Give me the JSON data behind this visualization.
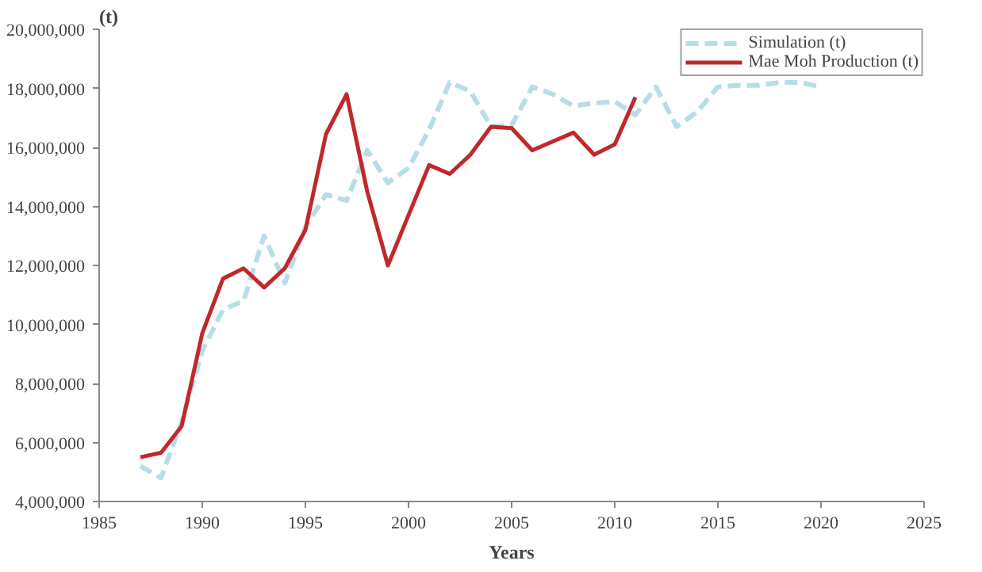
{
  "chart_data": {
    "type": "line",
    "xlabel": "Years",
    "ylabel": "(t)",
    "xlim": [
      1985,
      2025
    ],
    "xticks": [
      1985,
      1990,
      1995,
      2000,
      2005,
      2010,
      2015,
      2020,
      2025
    ],
    "ylim": [
      4000000,
      20000000
    ],
    "yticks": [
      {
        "value": 4000000,
        "label": "4,000,000"
      },
      {
        "value": 6000000,
        "label": "6,000,000"
      },
      {
        "value": 8000000,
        "label": "8,000,000"
      },
      {
        "value": 10000000,
        "label": "10,000,000"
      },
      {
        "value": 12000000,
        "label": "12,000,000"
      },
      {
        "value": 14000000,
        "label": "14,000,000"
      },
      {
        "value": 16000000,
        "label": "16,000,000"
      },
      {
        "value": 18000000,
        "label": "18,000,000"
      },
      {
        "value": 20000000,
        "label": "20,000,000"
      }
    ],
    "grid": false,
    "legend": "top right",
    "marker": "none",
    "series": [
      {
        "name": "Simulation (t)",
        "color": "#b7dde8",
        "line_style": "dashed",
        "x": [
          1987,
          1988,
          1989,
          1990,
          1991,
          1992,
          1993,
          1994,
          1995,
          1996,
          1997,
          1998,
          1999,
          2000,
          2001,
          2002,
          2003,
          2004,
          2005,
          2006,
          2007,
          2008,
          2009,
          2010,
          2011,
          2012,
          2013,
          2014,
          2015,
          2016,
          2017,
          2018,
          2019,
          2020
        ],
        "values": [
          5200000,
          4800000,
          6700000,
          9100000,
          10500000,
          10800000,
          13000000,
          11400000,
          13300000,
          14400000,
          14200000,
          15900000,
          14800000,
          15300000,
          16600000,
          18200000,
          17900000,
          16700000,
          16750000,
          18050000,
          17800000,
          17400000,
          17500000,
          17550000,
          17100000,
          18050000,
          16700000,
          17200000,
          18050000,
          18100000,
          18100000,
          18200000,
          18200000,
          18050000
        ]
      },
      {
        "name": "Mae Moh Production (t)",
        "color": "#c0282d",
        "line_style": "solid",
        "x": [
          1987,
          1988,
          1989,
          1990,
          1991,
          1992,
          1993,
          1994,
          1995,
          1996,
          1997,
          1998,
          1999,
          2000,
          2001,
          2002,
          2003,
          2004,
          2005,
          2006,
          2007,
          2008,
          2009,
          2010,
          2011
        ],
        "values": [
          5500000,
          5650000,
          6550000,
          9700000,
          11550000,
          11900000,
          11250000,
          11900000,
          13200000,
          16450000,
          17800000,
          14500000,
          12000000,
          13700000,
          15400000,
          15100000,
          15750000,
          16700000,
          16650000,
          15900000,
          16200000,
          16500000,
          15750000,
          16100000,
          17700000
        ]
      }
    ]
  }
}
